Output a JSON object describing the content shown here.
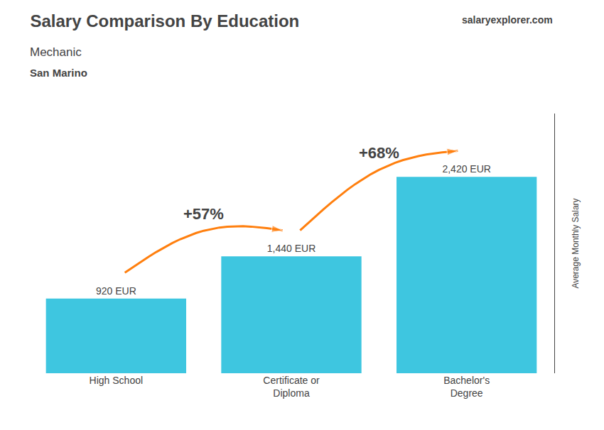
{
  "chart_data": {
    "type": "bar",
    "title": "Salary Comparison By Education",
    "subtitle": [
      "Mechanic",
      "San Marino"
    ],
    "ylabel": "Average Monthly Salary",
    "categories": [
      "High School",
      "Certificate or\nDiploma",
      "Bachelor's\nDegree"
    ],
    "values": [
      920,
      1440,
      2420
    ],
    "value_labels": [
      "920 EUR",
      "1,440 EUR",
      "2,420 EUR"
    ],
    "data_labels": true,
    "color": "#3ec6e0",
    "ylim": [
      0,
      3200
    ],
    "tick_labels": "x",
    "grid": false,
    "annotations": [
      {
        "text": "+57%",
        "x": [
          0,
          1
        ]
      },
      {
        "text": "+68%",
        "x": [
          1,
          2
        ]
      },
      {
        "text": "salaryexplorer.com"
      }
    ]
  }
}
